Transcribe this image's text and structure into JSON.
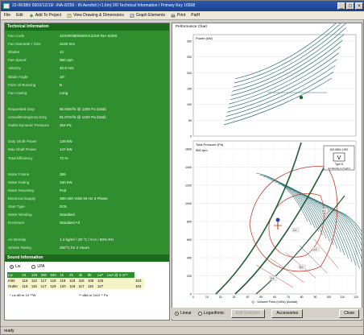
{
  "window": {
    "title": "22-IR/380/ 500X/12/19/ -/NA-0/250 - IN Aerofoil (<1.6m) 0/0 Technical Information / Primary Key 16508"
  },
  "menu": [
    {
      "label": "File",
      "icon": ""
    },
    {
      "label": "Edit",
      "icon": ""
    },
    {
      "label": "Add To Project",
      "icon": "add-icon"
    },
    {
      "label": "View Drawing & Dimensions",
      "icon": "drawing-icon"
    },
    {
      "label": "Graph Elements",
      "icon": "graph-icon"
    },
    {
      "label": "Print",
      "icon": "print-icon"
    },
    {
      "label": "PatH",
      "icon": ""
    }
  ],
  "tech_info": {
    "heading": "Technical Information",
    "rows": [
      {
        "label": "Fan Code",
        "value": "22X/IR/380/500X/12/19/-/NA-0/250"
      },
      {
        "label": "Fan Diameter / Size",
        "value": "2240 mm"
      },
      {
        "label": "Blades",
        "value": "12"
      },
      {
        "label": "Fan Speed",
        "value": "960 rpm"
      },
      {
        "label": "Velocity",
        "value": "20.6 m/s"
      },
      {
        "label": "Blade Angle",
        "value": "19°"
      },
      {
        "label": "Form of Running",
        "value": "B"
      },
      {
        "label": "Fan Casing",
        "value": "Long"
      },
      {
        "label": "",
        "value": ""
      },
      {
        "label": "Requested Duty",
        "value": "80.00m³/s @ 1200 Pa (total)"
      },
      {
        "label": "Actual/Emergency Duty",
        "value": "81.07m³/s @ 1232 Pa (total)"
      },
      {
        "label": "Outlet Dynamic Pressure",
        "value": "254 Pa"
      },
      {
        "label": "",
        "value": ""
      },
      {
        "label": "Duty Shaft Power",
        "value": "139 kW"
      },
      {
        "label": "Max Shaft Power",
        "value": "147 kW"
      },
      {
        "label": "Total Efficiency",
        "value": "72 %"
      },
      {
        "label": "",
        "value": ""
      },
      {
        "label": "Motor Frame",
        "value": "355"
      },
      {
        "label": "Motor Rating",
        "value": "160 kW"
      },
      {
        "label": "Motor Mounting",
        "value": "Pod"
      },
      {
        "label": "Electrical Supply",
        "value": "380-420 Volts 50 Hz 3 Phase"
      },
      {
        "label": "Start Type",
        "value": "DOL"
      },
      {
        "label": "Motor Winding",
        "value": "Standard"
      },
      {
        "label": "Enclosure",
        "value": "Standard All"
      },
      {
        "label": "",
        "value": ""
      },
      {
        "label": "Air Density",
        "value": "1.2 kg/m³ / 20 °C / 0 m / 50% RH"
      },
      {
        "label": "Smoke Rating",
        "value": "250°C for 2 Hours"
      }
    ]
  },
  "sound": {
    "heading": "Sound Information",
    "radio_lw": "Lw",
    "radio_lpa": "LPA",
    "header": [
      "Lw",
      "63",
      "125",
      "250",
      "500",
      "1k",
      "2k",
      "4k",
      "8k",
      "Lw*",
      "LwA @ 3 m**"
    ],
    "rows": [
      {
        "label": "Inlet",
        "values": [
          "116",
          "113",
          "117",
          "119",
          "119",
          "118",
          "115",
          "109",
          "125",
          "",
          "103"
        ]
      },
      {
        "label": "Outlet",
        "values": [
          "116",
          "115",
          "117",
          "119",
          "120",
          "118",
          "117",
          "110",
          "127",
          "",
          "104"
        ]
      }
    ],
    "note1": "* Lw dB re 10⁻¹²W",
    "note2": "** dBA re 2x10⁻⁵ Pa"
  },
  "chart": {
    "heading": "Performance Chart",
    "power_label": "Power (kW)",
    "pressure_label": "Total Pressure (Pa)",
    "flow_label": "Q - Volume Flow (m3/s) (Actual)",
    "speed_label": "960 rpm",
    "legend": {
      "box_title": "ISO 5801 1997",
      "symbol": "V",
      "type_text": "Type D",
      "density_text": "Air Density 1.2 kg/m³"
    },
    "power_ticks": [
      "300",
      "250",
      "200",
      "150",
      "100",
      "50",
      "0"
    ],
    "pressure_ticks": [
      "1600",
      "1400",
      "1200",
      "1000",
      "800",
      "600",
      "400",
      "200",
      "0"
    ],
    "x_ticks": [
      "0",
      "10",
      "20",
      "30",
      "40",
      "50",
      "60",
      "70",
      "80",
      "90",
      "100",
      "110",
      "120"
    ],
    "tags": [
      "4.1",
      "4.2",
      "5.0",
      "5.5",
      "6.0"
    ]
  },
  "bottom": {
    "radio_linear": "Linear",
    "radio_log": "Logarithmic",
    "select_button": "Edit Selection",
    "accessories_button": "Accessories",
    "close_button": "Close"
  },
  "status": {
    "text": "ready"
  },
  "colors": {
    "panel_green": "#2f8f2f",
    "header_green": "#1c6b1c",
    "curve_teal": "#2e6f74",
    "envelope_red": "#c43a2e",
    "system_green": "#1f5d34"
  }
}
